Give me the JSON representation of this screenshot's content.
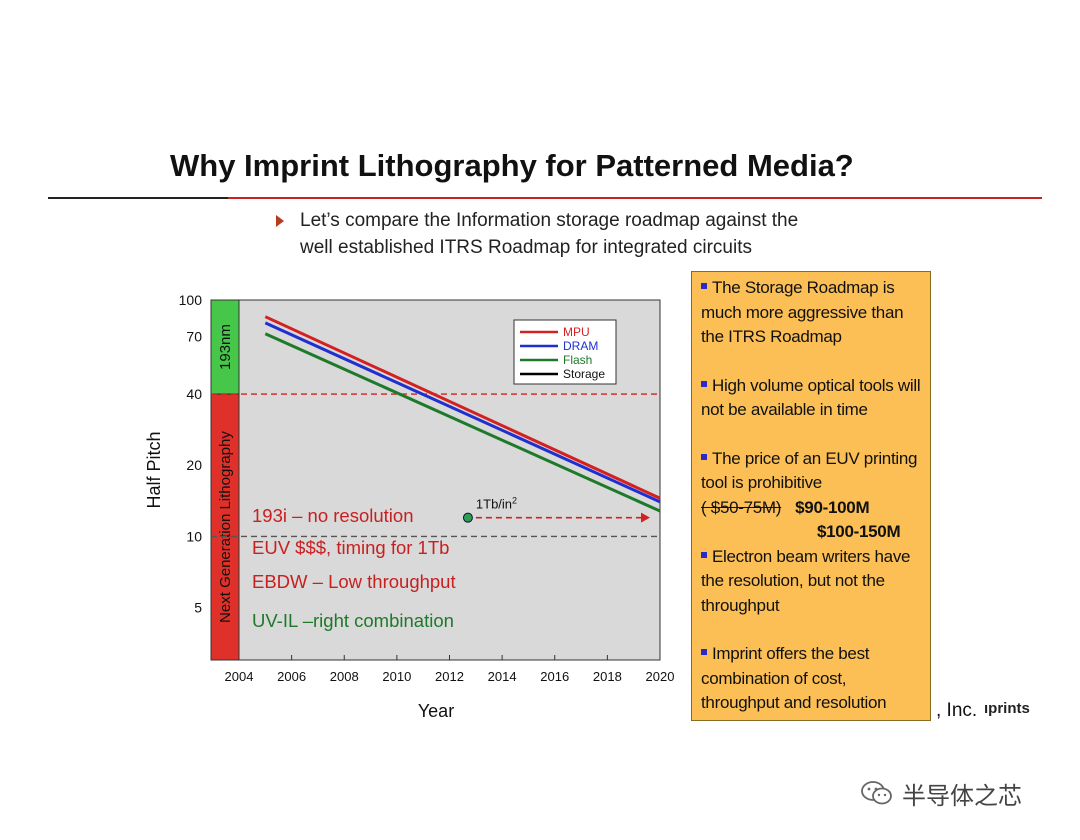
{
  "slide": {
    "title": "Why Imprint Lithography for Patterned Media?",
    "bullet_lines": [
      "Let’s compare the Information storage roadmap against the",
      "well established ITRS Roadmap for integrated circuits"
    ]
  },
  "chart_data": {
    "type": "line",
    "title": "",
    "xlabel": "Year",
    "ylabel": "Half Pitch",
    "yscale": "log",
    "xlim": [
      2004,
      2020
    ],
    "ylim": [
      3,
      100
    ],
    "x_ticks": [
      "2004",
      "2006",
      "2008",
      "2010",
      "2012",
      "2014",
      "2016",
      "2018",
      "2020"
    ],
    "y_ticks": [
      {
        "label": "100",
        "value": 100
      },
      {
        "label": "70",
        "value": 70
      },
      {
        "label": "40",
        "value": 40
      },
      {
        "label": "20",
        "value": 20
      },
      {
        "label": "10",
        "value": 10
      },
      {
        "label": "5",
        "value": 5
      }
    ],
    "series": [
      {
        "name": "MPU",
        "color": "#d42020",
        "x": [
          2005,
          2020
        ],
        "y": [
          85,
          14.5
        ]
      },
      {
        "name": "DRAM",
        "color": "#1f2fd0",
        "x": [
          2005,
          2020
        ],
        "y": [
          80,
          14.0
        ]
      },
      {
        "name": "Flash",
        "color": "#1e7a2a",
        "x": [
          2005,
          2020
        ],
        "y": [
          72,
          12.8
        ]
      },
      {
        "name": "Storage",
        "color": "#000000",
        "x": [],
        "y": []
      }
    ],
    "reference_lines": [
      {
        "y": 40,
        "style": "dashed",
        "color": "#d42020"
      },
      {
        "y": 10,
        "style": "dashed",
        "color": "#555555"
      }
    ],
    "bands": [
      {
        "label": "193nm",
        "from": 40,
        "to": 100,
        "color": "#47c74a"
      },
      {
        "label": "Next Generation Lithography",
        "from": 3,
        "to": 40,
        "color": "#e0302a"
      }
    ],
    "storage_point": {
      "label": "1Tb/in",
      "label_sup": "2",
      "x": 2012.7,
      "y": 12,
      "arrow_to": 2020
    },
    "annotations": [
      {
        "text": "193i – no resolution",
        "color": "#c82020"
      },
      {
        "text": "EUV $$$, timing for 1Tb",
        "color": "#c82020"
      },
      {
        "text": "EBDW – Low throughput",
        "color": "#c82020"
      },
      {
        "text": "UV-IL –right combination",
        "color": "#1e7a2a"
      }
    ],
    "legend_position": "top-right",
    "plot_background": "#d9d9d9"
  },
  "sidebox": {
    "item1": "The Storage Roadmap is much more aggressive than the ITRS Roadmap",
    "item2": "High volume optical tools will not be available in time",
    "item3": "The price of an EUV printing tool is prohibitive",
    "price_old": "( $50-75M)",
    "price_new1": "$90-100M",
    "price_new2": "$100-150M",
    "item4": "Electron beam writers have the resolution, but not the throughput",
    "item5": "Imprint offers the best combination of cost, throughput and resolution"
  },
  "footer": {
    "credit": ", Inc.",
    "credit_logo": "ıprints",
    "watermark": "半导体之芯",
    "watermark_icon": "wechat-icon"
  }
}
